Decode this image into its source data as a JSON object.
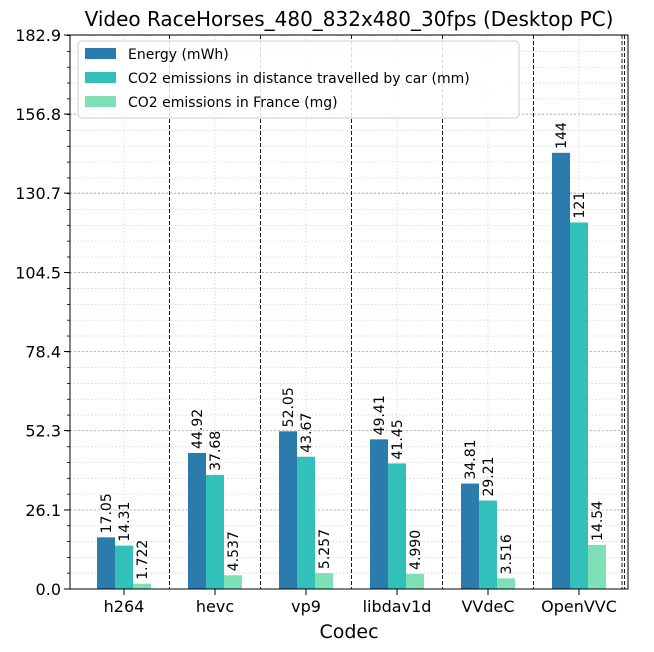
{
  "chart_data": {
    "type": "bar",
    "title": "Video RaceHorses_480_832x480_30fps (Desktop PC)",
    "xlabel": "Codec",
    "ylabel": "",
    "categories": [
      "h264",
      "hevc",
      "vp9",
      "libdav1d",
      "VVdeC",
      "OpenVVC"
    ],
    "series": [
      {
        "name": "Energy (mWh)",
        "color": "#2c7bad",
        "values": [
          17.05,
          44.92,
          52.05,
          49.41,
          34.81,
          144
        ],
        "labels": [
          "17.05",
          "44.92",
          "52.05",
          "49.41",
          "34.81",
          "144"
        ]
      },
      {
        "name": "CO2 emissions in distance travelled by car (mm)",
        "color": "#33bfba",
        "values": [
          14.31,
          37.68,
          43.67,
          41.45,
          29.21,
          121
        ],
        "labels": [
          "14.31",
          "37.68",
          "43.67",
          "41.45",
          "29.21",
          "121"
        ]
      },
      {
        "name": "CO2 emissions in France (mg)",
        "color": "#7fe0b6",
        "values": [
          1.722,
          4.537,
          5.257,
          4.99,
          3.516,
          14.54
        ],
        "labels": [
          "1.722",
          "4.537",
          "5.257",
          "4.990",
          "3.516",
          "14.54"
        ]
      }
    ],
    "ylim": [
      0,
      182.9
    ],
    "yticks": [
      0,
      26.1,
      52.3,
      78.4,
      104.5,
      130.7,
      156.8,
      182.9
    ],
    "ytick_labels": [
      "0.0",
      "26.1",
      "52.3",
      "78.4",
      "104.5",
      "130.7",
      "156.8",
      "182.9"
    ],
    "grid": true,
    "legend_position": "top-left"
  }
}
